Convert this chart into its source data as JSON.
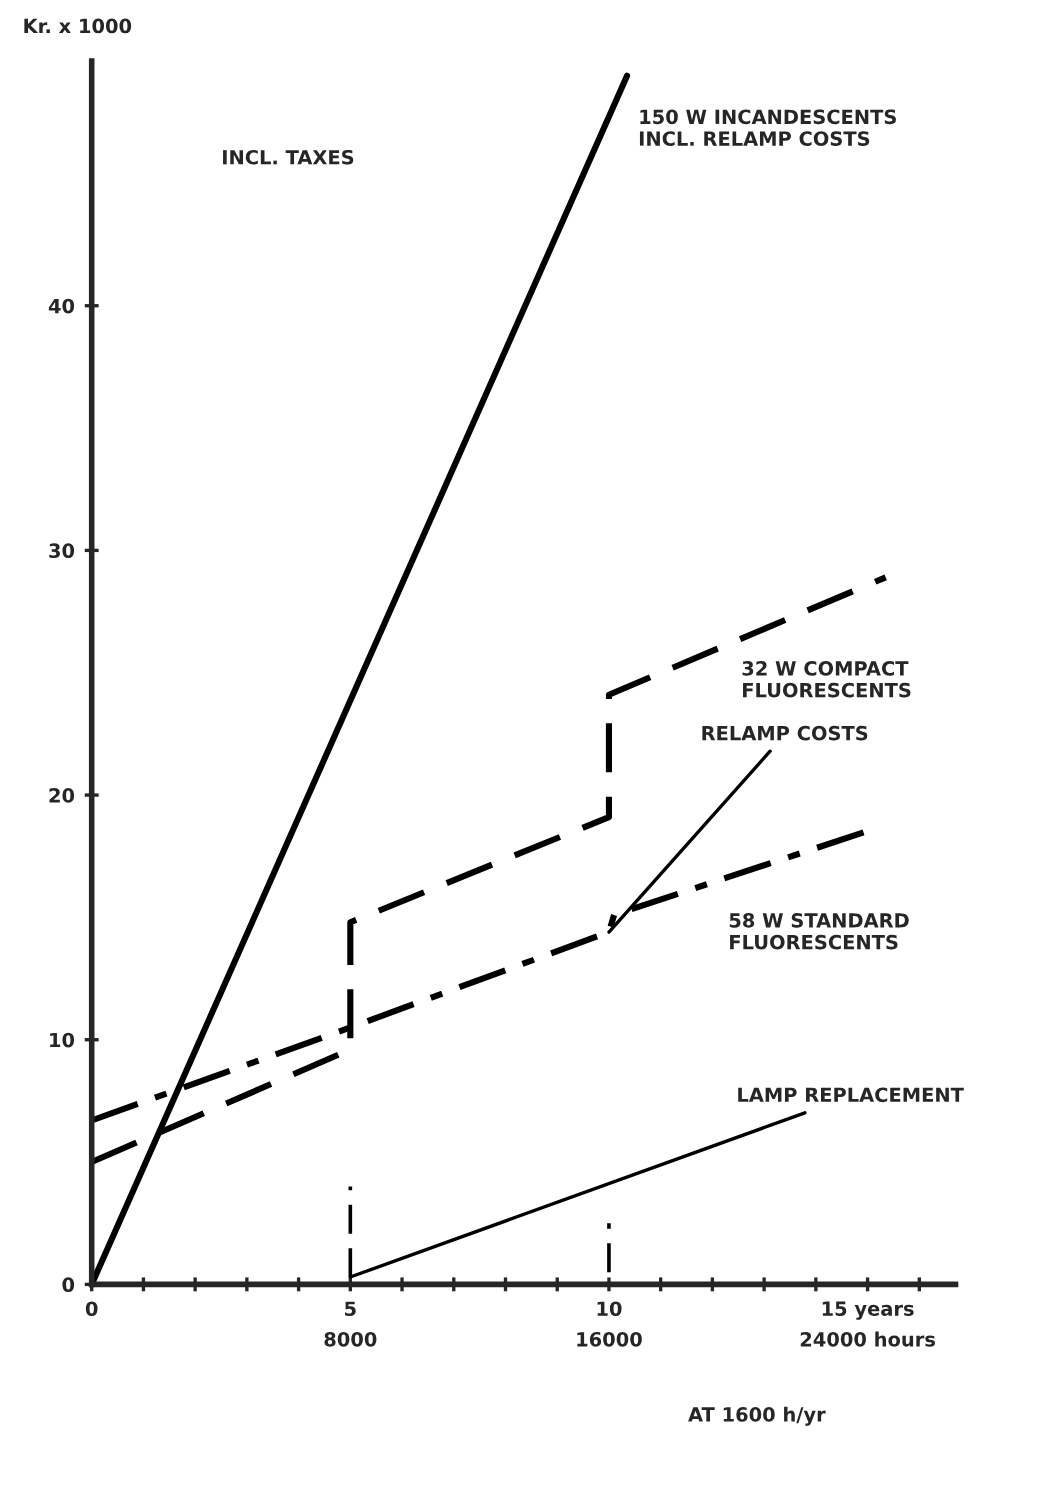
{
  "chart_data": {
    "type": "line",
    "xlabel": "AT 1600 h/yr",
    "ylabel": "Kr. x 1000",
    "xlim": [
      0,
      16.7
    ],
    "ylim": [
      0,
      50
    ],
    "xticks": [
      0,
      {
        "value": 1,
        "label": null
      },
      {
        "value": 2,
        "label": null
      },
      {
        "value": 3,
        "label": null
      },
      {
        "value": 4,
        "label": null
      },
      5,
      {
        "value": 6,
        "label": null
      },
      {
        "value": 7,
        "label": null
      },
      {
        "value": 8,
        "label": null
      },
      {
        "value": 9,
        "label": null
      },
      10,
      {
        "value": 11,
        "label": null
      },
      {
        "value": 12,
        "label": null
      },
      {
        "value": 13,
        "label": null
      },
      {
        "value": 14,
        "label": null
      },
      {
        "value": 15,
        "label": "15 years"
      },
      {
        "value": 16,
        "label": null
      }
    ],
    "yticks": [
      0,
      10,
      20,
      30,
      40
    ],
    "x2lim": [
      0,
      26720
    ],
    "x2ticks": [
      8000,
      16000,
      {
        "value": 24000,
        "label": "24000 hours"
      }
    ],
    "grid": false,
    "legend": false,
    "series": [
      {
        "name": "150 W INCANDESCENTS\nINCL. RELAMP COSTS",
        "color": "#000000",
        "line_style": "solid",
        "x": [
          0,
          10.35
        ],
        "values": [
          0,
          49.4
        ]
      },
      {
        "name": "32 W COMPACT\nFLUORESCENTS",
        "color": "#000000",
        "line_style": "dashed",
        "x": [
          0,
          5,
          5,
          10,
          10,
          15.35
        ],
        "values": [
          5,
          9.6,
          14.8,
          19.1,
          24.1,
          28.9
        ]
      },
      {
        "name": "58 W STANDARD\nFLUORESCENTS",
        "color": "#000000",
        "line_style": "dashdot",
        "x": [
          0,
          5,
          10,
          10.1,
          15.1
        ],
        "values": [
          6.7,
          10.5,
          14.4,
          15.1,
          18.6
        ]
      },
      {
        "color": "#000000",
        "line_style": "dashed",
        "x": [
          5,
          5
        ],
        "values": [
          0.3,
          4.0
        ]
      },
      {
        "color": "#000000",
        "line_style": "dashed",
        "x": [
          10,
          10
        ],
        "values": [
          0.5,
          2.5
        ]
      }
    ],
    "annotations": [
      "INCL. TAXES",
      {
        "text": "RELAMP COSTS",
        "x": 10,
        "y": 14.4
      },
      {
        "text": "LAMP REPLACEMENT",
        "x": 5,
        "y": 0.3
      }
    ]
  }
}
